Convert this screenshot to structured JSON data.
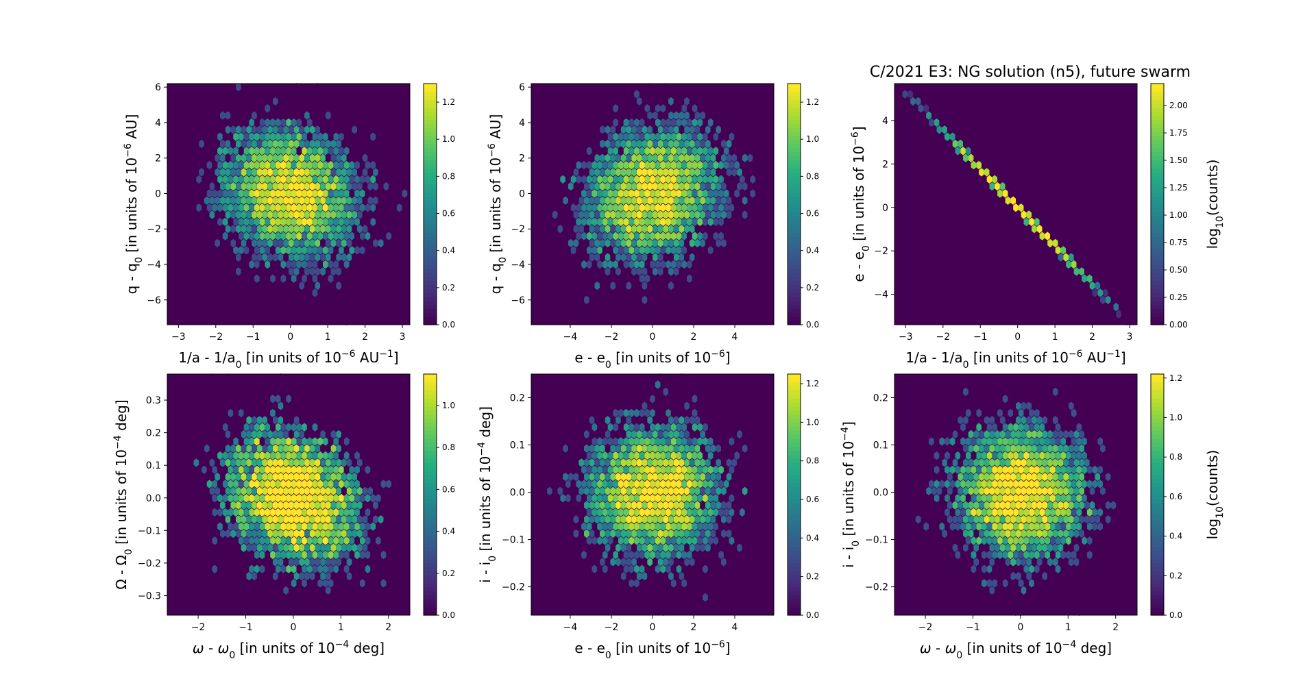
{
  "figure": {
    "title": "C/2021 E3: NG solution (n5), future swarm"
  },
  "chart_data": [
    {
      "type": "heatmap",
      "panel": "top-left",
      "xlabel": "1/a - 1/a",
      "xlabel_sub": "0",
      "xlabel_rest": " [in units of 10",
      "xlabel_sup": "−6",
      "xlabel_end": " AU",
      "xlabel_sup2": "−1",
      "xlabel_close": "]",
      "ylabel": "q - q",
      "ylabel_sub": "0",
      "ylabel_rest": " [in units of 10",
      "ylabel_sup": "−6",
      "ylabel_end": " AU]",
      "xlim": [
        -3.3,
        3.2
      ],
      "ylim": [
        -7.4,
        6.2
      ],
      "xticks": [
        -3,
        -2,
        -1,
        0,
        1,
        2,
        3
      ],
      "xtick_labels": [
        "−3",
        "−2",
        "−1",
        "0",
        "1",
        "2",
        "3"
      ],
      "yticks": [
        -6,
        -4,
        -2,
        0,
        2,
        4,
        6
      ],
      "ytick_labels": [
        "−6",
        "−4",
        "−2",
        "0",
        "2",
        "4",
        "6"
      ],
      "colorbar": {
        "ticks": [
          0.0,
          0.2,
          0.4,
          0.6,
          0.8,
          1.0,
          1.2
        ],
        "tick_labels": [
          "0.0",
          "0.2",
          "0.4",
          "0.6",
          "0.8",
          "1.0",
          "1.2"
        ],
        "max": 1.3,
        "label": ""
      },
      "distribution": {
        "kind": "gaussian_cloud",
        "center": [
          0,
          0
        ],
        "sigma": [
          0.95,
          2.0
        ],
        "correlation": -0.15,
        "points": 4200,
        "seed": 11
      }
    },
    {
      "type": "heatmap",
      "panel": "top-middle",
      "xlabel": "e - e",
      "xlabel_sub": "0",
      "xlabel_rest": " [in units of 10",
      "xlabel_sup": "−6",
      "xlabel_end": "]",
      "ylabel": "q - q",
      "ylabel_sub": "0",
      "ylabel_rest": " [in units of 10",
      "ylabel_sup": "−6",
      "ylabel_end": " AU]",
      "xlim": [
        -5.9,
        5.9
      ],
      "ylim": [
        -7.4,
        6.2
      ],
      "xticks": [
        -4,
        -2,
        0,
        2,
        4
      ],
      "xtick_labels": [
        "−4",
        "−2",
        "0",
        "2",
        "4"
      ],
      "yticks": [
        -6,
        -4,
        -2,
        0,
        2,
        4,
        6
      ],
      "ytick_labels": [
        "−6",
        "−4",
        "−2",
        "0",
        "2",
        "4",
        "6"
      ],
      "colorbar": {
        "ticks": [
          0.0,
          0.2,
          0.4,
          0.6,
          0.8,
          1.0,
          1.2
        ],
        "tick_labels": [
          "0.0",
          "0.2",
          "0.4",
          "0.6",
          "0.8",
          "1.0",
          "1.2"
        ],
        "max": 1.3,
        "label": ""
      },
      "distribution": {
        "kind": "gaussian_cloud",
        "center": [
          0,
          0
        ],
        "sigma": [
          1.75,
          2.0
        ],
        "correlation": 0.15,
        "points": 4200,
        "seed": 23
      }
    },
    {
      "type": "heatmap",
      "panel": "top-right",
      "xlabel": "1/a - 1/a",
      "xlabel_sub": "0",
      "xlabel_rest": " [in units of 10",
      "xlabel_sup": "−6",
      "xlabel_end": " AU",
      "xlabel_sup2": "−1",
      "xlabel_close": "]",
      "ylabel": "e - e",
      "ylabel_sub": "0",
      "ylabel_rest": " [in units of 10",
      "ylabel_sup": "−6",
      "ylabel_end": "]",
      "xlim": [
        -3.3,
        3.2
      ],
      "ylim": [
        -5.4,
        5.7
      ],
      "xticks": [
        -3,
        -2,
        -1,
        0,
        1,
        2,
        3
      ],
      "xtick_labels": [
        "−3",
        "−2",
        "−1",
        "0",
        "1",
        "2",
        "3"
      ],
      "yticks": [
        -4,
        -2,
        0,
        2,
        4
      ],
      "ytick_labels": [
        "−4",
        "−2",
        "0",
        "2",
        "4"
      ],
      "colorbar": {
        "ticks": [
          0.0,
          0.25,
          0.5,
          0.75,
          1.0,
          1.25,
          1.5,
          1.75,
          2.0
        ],
        "tick_labels": [
          "0.00",
          "0.25",
          "0.50",
          "0.75",
          "1.00",
          "1.25",
          "1.50",
          "1.75",
          "2.00"
        ],
        "max": 2.2,
        "label": "log",
        "label_sub": "10",
        "label_end": "(counts)"
      },
      "distribution": {
        "kind": "linear",
        "slope": -1.77,
        "x_range": [
          -3.2,
          3.05
        ],
        "sigma_x": 0.95,
        "points": 4200,
        "seed": 5
      }
    },
    {
      "type": "heatmap",
      "panel": "bottom-left",
      "xlabel": "ω - ω",
      "xlabel_sub": "0",
      "xlabel_rest": " [in units of 10",
      "xlabel_sup": "−4",
      "xlabel_end": " deg]",
      "xlabel_italic_head": true,
      "ylabel": "Ω - Ω",
      "ylabel_sub": "0",
      "ylabel_rest": " [in units of 10",
      "ylabel_sup": "−4",
      "ylabel_end": " deg]",
      "xlim": [
        -2.65,
        2.45
      ],
      "ylim": [
        -0.36,
        0.38
      ],
      "xticks": [
        -2,
        -1,
        0,
        1,
        2
      ],
      "xtick_labels": [
        "−2",
        "−1",
        "0",
        "1",
        "2"
      ],
      "yticks": [
        -0.3,
        -0.2,
        -0.1,
        0.0,
        0.1,
        0.2,
        0.3
      ],
      "ytick_labels": [
        "−0.3",
        "−0.2",
        "−0.1",
        "0.0",
        "0.1",
        "0.2",
        "0.3"
      ],
      "colorbar": {
        "ticks": [
          0.0,
          0.2,
          0.4,
          0.6,
          0.8,
          1.0
        ],
        "tick_labels": [
          "0.0",
          "0.2",
          "0.4",
          "0.6",
          "0.8",
          "1.0"
        ],
        "max": 1.15,
        "label": ""
      },
      "distribution": {
        "kind": "gaussian_cloud",
        "center": [
          0,
          0
        ],
        "sigma": [
          0.75,
          0.11
        ],
        "correlation": -0.2,
        "points": 4200,
        "seed": 31
      }
    },
    {
      "type": "heatmap",
      "panel": "bottom-middle",
      "xlabel": "e - e",
      "xlabel_sub": "0",
      "xlabel_rest": " [in units of 10",
      "xlabel_sup": "−6",
      "xlabel_end": "]",
      "ylabel": "i - i",
      "ylabel_sub": "0",
      "ylabel_rest": " [in units of 10",
      "ylabel_sup": "−4",
      "ylabel_end": " deg]",
      "xlim": [
        -5.9,
        5.9
      ],
      "ylim": [
        -0.26,
        0.25
      ],
      "xticks": [
        -4,
        -2,
        0,
        2,
        4
      ],
      "xtick_labels": [
        "−4",
        "−2",
        "0",
        "2",
        "4"
      ],
      "yticks": [
        -0.2,
        -0.1,
        0.0,
        0.1,
        0.2
      ],
      "ytick_labels": [
        "−0.2",
        "−0.1",
        "0.0",
        "0.1",
        "0.2"
      ],
      "colorbar": {
        "ticks": [
          0.0,
          0.2,
          0.4,
          0.6,
          0.8,
          1.0,
          1.2
        ],
        "tick_labels": [
          "0.0",
          "0.2",
          "0.4",
          "0.6",
          "0.8",
          "1.0",
          "1.2"
        ],
        "max": 1.25,
        "label": ""
      },
      "distribution": {
        "kind": "gaussian_cloud",
        "center": [
          0,
          0
        ],
        "sigma": [
          1.75,
          0.075
        ],
        "correlation": 0.0,
        "points": 4200,
        "seed": 47
      }
    },
    {
      "type": "heatmap",
      "panel": "bottom-right",
      "xlabel": "ω - ω",
      "xlabel_sub": "0",
      "xlabel_rest": " [in units of 10",
      "xlabel_sup": "−4",
      "xlabel_end": " deg]",
      "xlabel_italic_head": true,
      "ylabel": "i - i",
      "ylabel_sub": "0",
      "ylabel_rest": " [in units of 10",
      "ylabel_sup": "−4",
      "ylabel_end": "]",
      "xlim": [
        -2.65,
        2.45
      ],
      "ylim": [
        -0.26,
        0.25
      ],
      "xticks": [
        -2,
        -1,
        0,
        1,
        2
      ],
      "xtick_labels": [
        "−2",
        "−1",
        "0",
        "1",
        "2"
      ],
      "yticks": [
        -0.2,
        -0.1,
        0.0,
        0.1,
        0.2
      ],
      "ytick_labels": [
        "−0.2",
        "−0.1",
        "0.0",
        "0.1",
        "0.2"
      ],
      "colorbar": {
        "ticks": [
          0.0,
          0.2,
          0.4,
          0.6,
          0.8,
          1.0,
          1.2
        ],
        "tick_labels": [
          "0.0",
          "0.2",
          "0.4",
          "0.6",
          "0.8",
          "1.0",
          "1.2"
        ],
        "max": 1.22,
        "label": "log",
        "label_sub": "10",
        "label_end": "(counts)"
      },
      "distribution": {
        "kind": "gaussian_cloud",
        "center": [
          0,
          0
        ],
        "sigma": [
          0.75,
          0.075
        ],
        "correlation": 0.0,
        "points": 4200,
        "seed": 59
      }
    }
  ],
  "colors": {
    "colormap": "viridis",
    "background_bin": "#440154"
  }
}
